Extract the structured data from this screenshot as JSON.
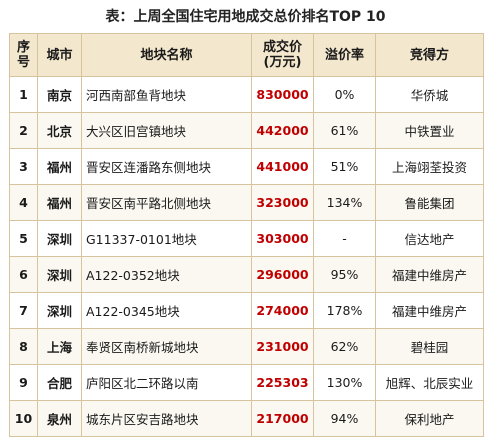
{
  "title": "表：上周全国住宅用地成交总价排名TOP 10",
  "headers": {
    "rank": "序\n号",
    "rank_l1": "序",
    "rank_l2": "号",
    "city": "城市",
    "name": "地块名称",
    "price_l1": "成交价",
    "price_l2": "(万元)",
    "premium": "溢价率",
    "winner": "竞得方"
  },
  "rows": [
    {
      "rank": "1",
      "city": "南京",
      "name": "河西南部鱼背地块",
      "price": "830000",
      "premium": "0%",
      "winner": "华侨城"
    },
    {
      "rank": "2",
      "city": "北京",
      "name": "大兴区旧宫镇地块",
      "price": "442000",
      "premium": "61%",
      "winner": "中铁置业"
    },
    {
      "rank": "3",
      "city": "福州",
      "name": "晋安区连潘路东侧地块",
      "price": "441000",
      "premium": "51%",
      "winner": "上海翊荃投资"
    },
    {
      "rank": "4",
      "city": "福州",
      "name": "晋安区南平路北侧地块",
      "price": "323000",
      "premium": "134%",
      "winner": "鲁能集团"
    },
    {
      "rank": "5",
      "city": "深圳",
      "name": "G11337-0101地块",
      "price": "303000",
      "premium": "-",
      "winner": "信达地产"
    },
    {
      "rank": "6",
      "city": "深圳",
      "name": "A122-0352地块",
      "price": "296000",
      "premium": "95%",
      "winner": "福建中维房产"
    },
    {
      "rank": "7",
      "city": "深圳",
      "name": "A122-0345地块",
      "price": "274000",
      "premium": "178%",
      "winner": "福建中维房产"
    },
    {
      "rank": "8",
      "city": "上海",
      "name": "奉贤区南桥新城地块",
      "price": "231000",
      "premium": "62%",
      "winner": "碧桂园"
    },
    {
      "rank": "9",
      "city": "合肥",
      "name": "庐阳区北二环路以南",
      "price": "225303",
      "premium": "130%",
      "winner": "旭辉、北辰实业"
    },
    {
      "rank": "10",
      "city": "泉州",
      "name": "城东片区安吉路地块",
      "price": "217000",
      "premium": "94%",
      "winner": "保利地产"
    }
  ],
  "colors": {
    "header_bg": "#f3e7cd",
    "border": "#d7c39d",
    "price_text": "#c00000"
  }
}
